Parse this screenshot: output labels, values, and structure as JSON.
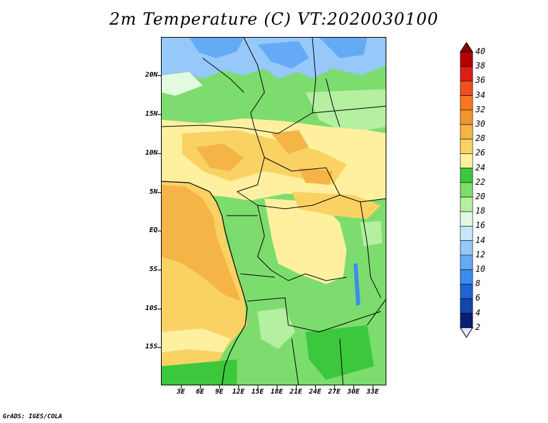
{
  "title": "2m Temperature (C) VT:2020030100",
  "credit": "GrADS: IGES/COLA",
  "y_axis_labels": [
    "20N",
    "15N",
    "10N",
    "5N",
    "EQ",
    "5S",
    "10S",
    "15S"
  ],
  "x_axis_labels": [
    "3E",
    "6E",
    "9E",
    "12E",
    "15E",
    "18E",
    "21E",
    "24E",
    "27E",
    "30E",
    "33E"
  ],
  "colorbar": {
    "labels": [
      "40",
      "38",
      "36",
      "34",
      "32",
      "30",
      "28",
      "26",
      "24",
      "22",
      "20",
      "18",
      "16",
      "14",
      "12",
      "10",
      "8",
      "6",
      "4",
      "2"
    ],
    "colors": [
      "#8c0000",
      "#b40000",
      "#dc1e14",
      "#f0501e",
      "#f5781e",
      "#f0962d",
      "#f5b446",
      "#fad264",
      "#fff0a0",
      "#3cc83c",
      "#7ddc6e",
      "#b4f0a0",
      "#e1fae1",
      "#c8e6fa",
      "#96c8fa",
      "#64aaf5",
      "#3c8cf0",
      "#1e64d2",
      "#1446aa",
      "#0a1e78",
      "#e6e6fa"
    ]
  }
}
